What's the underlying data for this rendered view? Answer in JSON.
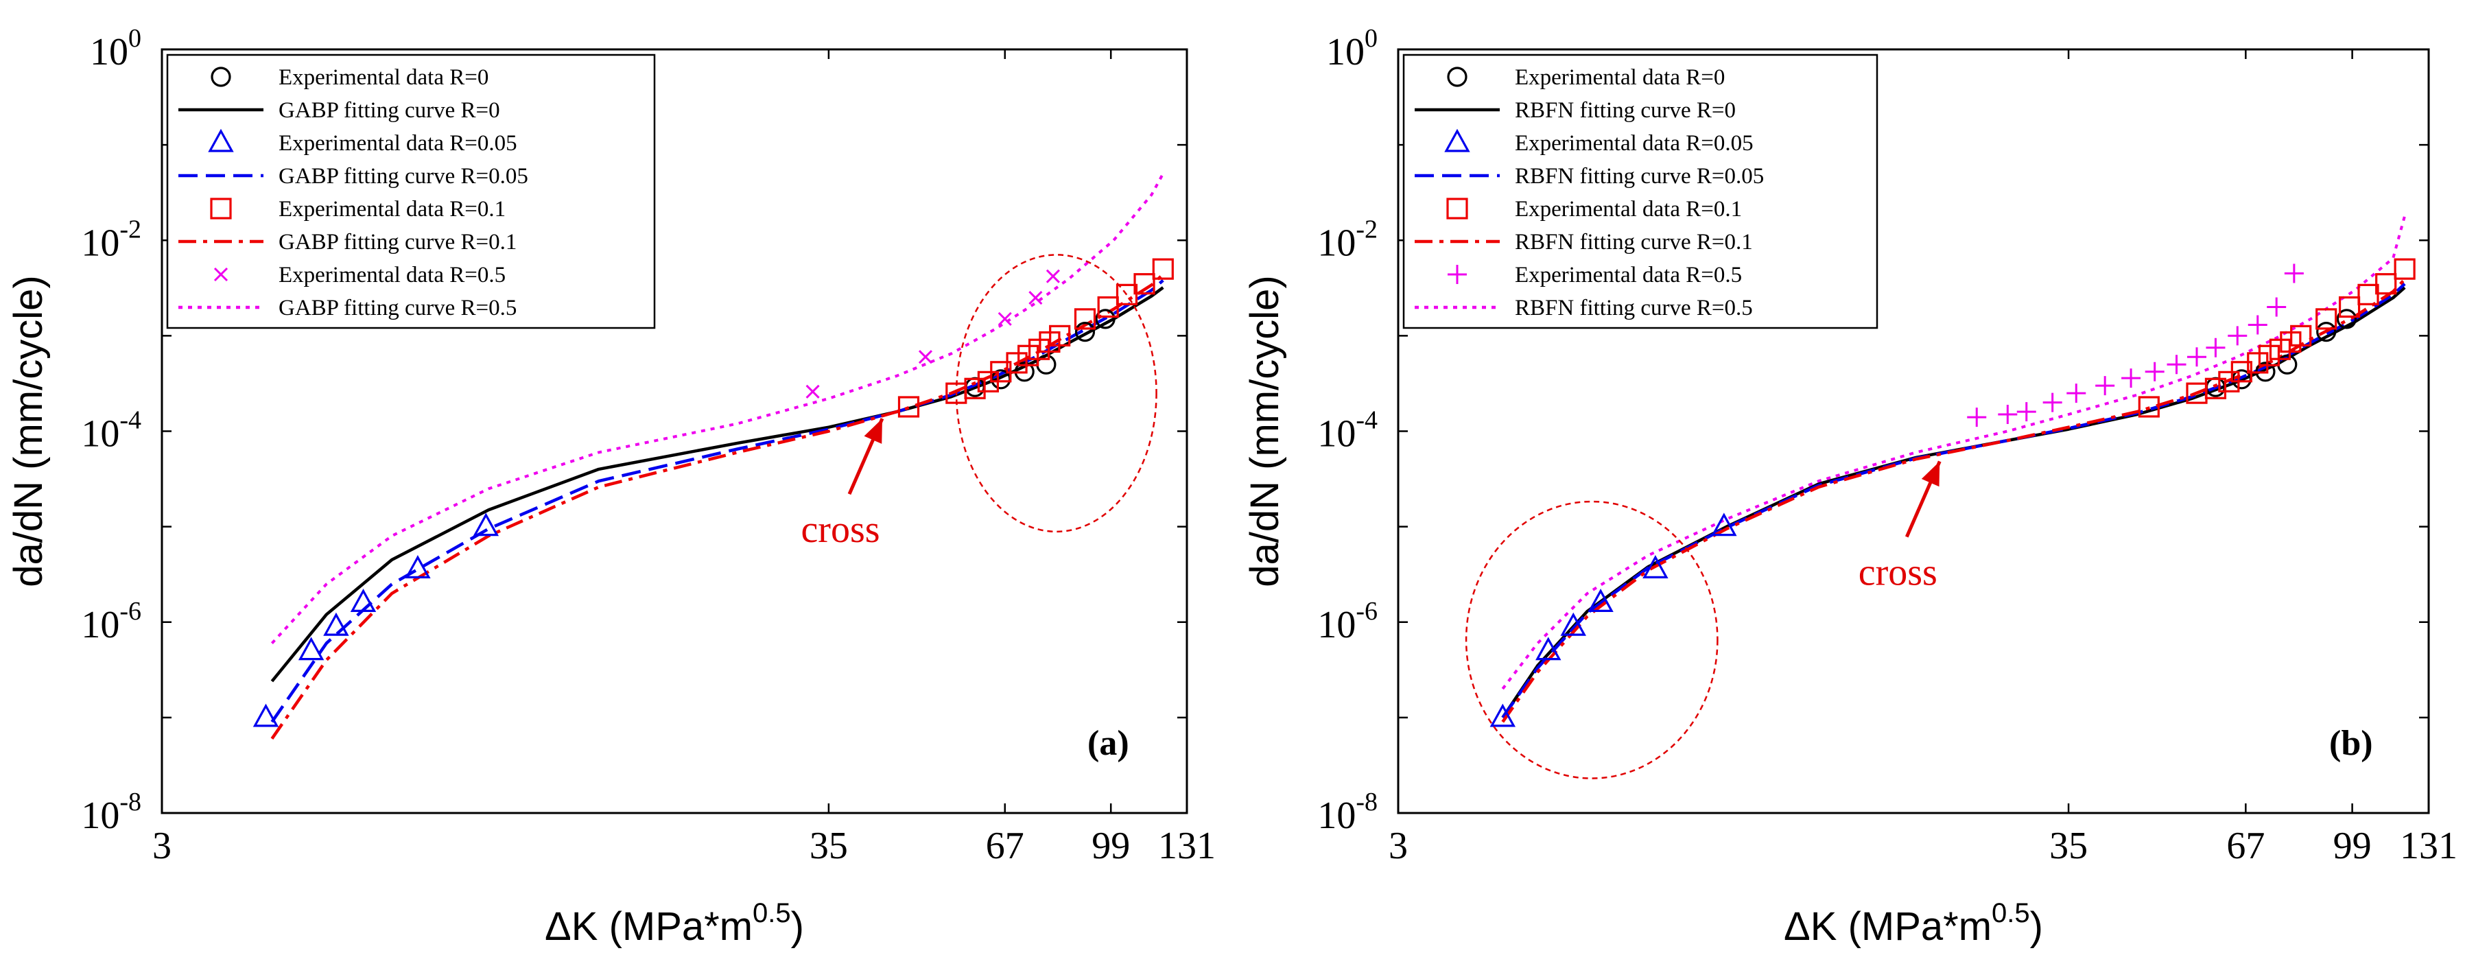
{
  "chart_data": [
    {
      "type": "line",
      "panel_label": "(a)",
      "xlabel": "ΔK (MPa*m",
      "xlabel_sup": "0.5",
      "xlabel_end": ")",
      "ylabel": "da/dN (mm/cycle)",
      "x_scale": "log",
      "y_scale": "log",
      "xlim": [
        3,
        131
      ],
      "ylim": [
        1e-08,
        1
      ],
      "x_ticks": [
        {
          "value": 3,
          "label": "3"
        },
        {
          "value": 35,
          "label": "35"
        },
        {
          "value": 67,
          "label": "67"
        },
        {
          "value": 99,
          "label": "99"
        },
        {
          "value": 131,
          "label": "131"
        }
      ],
      "y_ticks": [
        {
          "value": 1e-08,
          "base": "10",
          "exp": "-8"
        },
        {
          "value": 1e-06,
          "base": "10",
          "exp": "-6"
        },
        {
          "value": 0.0001,
          "base": "10",
          "exp": "-4"
        },
        {
          "value": 0.01,
          "base": "10",
          "exp": "-2"
        },
        {
          "value": 1,
          "base": "10",
          "exp": "0"
        }
      ],
      "grid": false,
      "legend_position": "top-left",
      "annotation": {
        "text": "cross",
        "x": 42,
        "y": 0.00016
      },
      "highlight_ellipse": {
        "cx": 81,
        "cy": 0.00025,
        "rx_log": 0.16,
        "ry_log": 1.45
      },
      "series": [
        {
          "name": "Experimental data R=0",
          "kind": "scatter",
          "marker": "circle",
          "color": "#000000",
          "x": [
            60,
            66,
            72,
            78,
            90,
            97
          ],
          "y": [
            0.00029,
            0.00035,
            0.00042,
            0.0005,
            0.0011,
            0.0015
          ]
        },
        {
          "name": "GABP fitting curve R=0",
          "kind": "line",
          "dash": "solid",
          "color": "#000000",
          "x": [
            4.5,
            5.5,
            7,
            10,
            15,
            25,
            35,
            45,
            55,
            65,
            75,
            85,
            100,
            115,
            120
          ],
          "y": [
            2.4e-07,
            1.2e-06,
            4.5e-06,
            1.5e-05,
            4e-05,
            7.5e-05,
            0.00011,
            0.00016,
            0.00023,
            0.00035,
            0.00054,
            0.00085,
            0.0015,
            0.0026,
            0.0032
          ]
        },
        {
          "name": "Experimental data R=0.05",
          "kind": "scatter",
          "marker": "triangle",
          "color": "#0000ee",
          "x": [
            4.4,
            5.2,
            5.7,
            6.3,
            7.7,
            9.9
          ],
          "y": [
            1e-07,
            5e-07,
            9e-07,
            1.6e-06,
            3.6e-06,
            1e-05
          ]
        },
        {
          "name": "GABP fitting curve R=0.05",
          "kind": "line",
          "dash": "dashed",
          "color": "#0000ee",
          "x": [
            4.5,
            5.5,
            7,
            10,
            15,
            25,
            35,
            45,
            55,
            65,
            75,
            85,
            100,
            115,
            120
          ],
          "y": [
            9e-08,
            6e-07,
            2.5e-06,
            9.5e-06,
            3e-05,
            6.5e-05,
            0.000105,
            0.00016,
            0.00024,
            0.00038,
            0.0006,
            0.00095,
            0.0017,
            0.003,
            0.0038
          ]
        },
        {
          "name": "Experimental data R=0.1",
          "kind": "scatter",
          "marker": "square",
          "color": "#ee0000",
          "x": [
            47,
            56,
            60,
            63,
            66,
            70,
            73,
            76,
            79,
            82,
            90,
            98,
            105,
            112,
            120
          ],
          "y": [
            0.00018,
            0.00025,
            0.00028,
            0.00033,
            0.00042,
            0.00052,
            0.00062,
            0.00072,
            0.00086,
            0.001,
            0.0015,
            0.002,
            0.0027,
            0.0035,
            0.005
          ]
        },
        {
          "name": "GABP fitting curve R=0.1",
          "kind": "line",
          "dash": "dashdot",
          "color": "#ee0000",
          "x": [
            4.5,
            5.5,
            7,
            10,
            15,
            25,
            35,
            45,
            55,
            65,
            75,
            85,
            100,
            115,
            120
          ],
          "y": [
            6e-08,
            4e-07,
            2e-06,
            8e-06,
            2.6e-05,
            6e-05,
            0.0001,
            0.00016,
            0.00025,
            0.0004,
            0.00065,
            0.00105,
            0.0019,
            0.0034,
            0.0044
          ]
        },
        {
          "name": "Experimental data R=0.5",
          "kind": "scatter",
          "marker": "x",
          "color": "#ee00ee",
          "x": [
            33,
            50,
            67,
            75,
            80
          ],
          "y": [
            0.00026,
            0.0006,
            0.0015,
            0.0025,
            0.0042
          ]
        },
        {
          "name": "GABP fitting curve R=0.5",
          "kind": "line",
          "dash": "dotted",
          "color": "#ee00ee",
          "x": [
            4.5,
            5.5,
            7,
            10,
            15,
            25,
            35,
            45,
            55,
            65,
            75,
            85,
            100,
            115,
            120
          ],
          "y": [
            6e-07,
            2.5e-06,
            8e-06,
            2.5e-05,
            6e-05,
            0.00012,
            0.00022,
            0.00038,
            0.00065,
            0.0012,
            0.0022,
            0.004,
            0.01,
            0.03,
            0.05
          ]
        }
      ]
    },
    {
      "type": "line",
      "panel_label": "(b)",
      "xlabel": "ΔK (MPa*m",
      "xlabel_sup": "0.5",
      "xlabel_end": ")",
      "ylabel": "da/dN (mm/cycle)",
      "x_scale": "log",
      "y_scale": "log",
      "xlim": [
        3,
        131
      ],
      "ylim": [
        1e-08,
        1
      ],
      "x_ticks": [
        {
          "value": 3,
          "label": "3"
        },
        {
          "value": 35,
          "label": "35"
        },
        {
          "value": 67,
          "label": "67"
        },
        {
          "value": 99,
          "label": "99"
        },
        {
          "value": 131,
          "label": "131"
        }
      ],
      "y_ticks": [
        {
          "value": 1e-08,
          "base": "10",
          "exp": "-8"
        },
        {
          "value": 1e-06,
          "base": "10",
          "exp": "-6"
        },
        {
          "value": 0.0001,
          "base": "10",
          "exp": "-4"
        },
        {
          "value": 0.01,
          "base": "10",
          "exp": "-2"
        },
        {
          "value": 1,
          "base": "10",
          "exp": "0"
        }
      ],
      "grid": false,
      "legend_position": "top-left",
      "annotation": {
        "text": "cross",
        "x": 21.5,
        "y": 5.7e-05
      },
      "highlight_ellipse": {
        "cx": 6.1,
        "cy": 6.5e-07,
        "rx_log": 0.2,
        "ry_log": 1.45
      },
      "series": [
        {
          "name": "Experimental data R=0",
          "kind": "scatter",
          "marker": "circle",
          "color": "#000000",
          "x": [
            60,
            66,
            72,
            78,
            90,
            97
          ],
          "y": [
            0.00029,
            0.00035,
            0.00042,
            0.0005,
            0.0011,
            0.0015
          ]
        },
        {
          "name": "RBFN fitting curve R=0",
          "kind": "line",
          "dash": "solid",
          "color": "#000000",
          "x": [
            4.4,
            5,
            6,
            7.5,
            10,
            14,
            20,
            28,
            35,
            45,
            55,
            65,
            75,
            85,
            100,
            115,
            120
          ],
          "y": [
            1e-07,
            3.5e-07,
            1.3e-06,
            3.8e-06,
            1e-05,
            2.8e-05,
            5.3e-05,
            8e-05,
            0.000105,
            0.00015,
            0.00022,
            0.00033,
            0.0005,
            0.0008,
            0.0014,
            0.0025,
            0.0032
          ]
        },
        {
          "name": "Experimental data R=0.05",
          "kind": "scatter",
          "marker": "triangle",
          "color": "#0000ee",
          "x": [
            4.4,
            5.2,
            5.7,
            6.3,
            7.7,
            9.9
          ],
          "y": [
            1e-07,
            5e-07,
            9e-07,
            1.6e-06,
            3.6e-06,
            1e-05
          ]
        },
        {
          "name": "RBFN fitting curve R=0.05",
          "kind": "line",
          "dash": "dashed",
          "color": "#0000ee",
          "x": [
            4.4,
            5,
            6,
            7.5,
            10,
            14,
            20,
            28,
            35,
            45,
            55,
            65,
            75,
            85,
            100,
            115,
            120
          ],
          "y": [
            1e-07,
            3.3e-07,
            1.25e-06,
            3.7e-06,
            9.8e-06,
            2.7e-05,
            5.2e-05,
            8e-05,
            0.000107,
            0.000155,
            0.00023,
            0.00035,
            0.00053,
            0.00085,
            0.0015,
            0.0027,
            0.0035
          ]
        },
        {
          "name": "Experimental data R=0.1",
          "kind": "scatter",
          "marker": "square",
          "color": "#ee0000",
          "x": [
            47,
            56,
            60,
            63,
            66,
            70,
            73,
            76,
            79,
            82,
            90,
            98,
            105,
            112,
            120
          ],
          "y": [
            0.00018,
            0.00025,
            0.00028,
            0.00033,
            0.00042,
            0.00052,
            0.00062,
            0.00072,
            0.00086,
            0.001,
            0.0015,
            0.002,
            0.0027,
            0.0035,
            0.005
          ]
        },
        {
          "name": "RBFN fitting curve R=0.1",
          "kind": "line",
          "dash": "dashdot",
          "color": "#ee0000",
          "x": [
            4.4,
            5,
            6,
            7.5,
            10,
            14,
            20,
            28,
            35,
            45,
            55,
            65,
            75,
            85,
            100,
            115,
            120
          ],
          "y": [
            9e-08,
            3e-07,
            1.15e-06,
            3.5e-06,
            9.5e-06,
            2.6e-05,
            5.1e-05,
            8e-05,
            0.00011,
            0.00016,
            0.00024,
            0.00037,
            0.00057,
            0.00092,
            0.0016,
            0.0029,
            0.0039
          ]
        },
        {
          "name": "Experimental data R=0.5",
          "kind": "scatter",
          "marker": "plus",
          "color": "#ee00ee",
          "x": [
            25,
            28,
            30,
            33,
            36,
            40,
            44,
            48,
            52,
            56,
            60,
            65,
            70,
            75,
            80
          ],
          "y": [
            0.00014,
            0.00015,
            0.00016,
            0.0002,
            0.00025,
            0.0003,
            0.00036,
            0.00042,
            0.0005,
            0.0006,
            0.00075,
            0.001,
            0.0013,
            0.002,
            0.0045
          ]
        },
        {
          "name": "RBFN fitting curve R=0.5",
          "kind": "line",
          "dash": "dotted",
          "color": "#ee00ee",
          "x": [
            4.4,
            5,
            6,
            7.5,
            10,
            14,
            20,
            28,
            35,
            45,
            55,
            65,
            75,
            85,
            100,
            115,
            120
          ],
          "y": [
            2e-07,
            6e-07,
            2e-06,
            5e-06,
            1.2e-05,
            3e-05,
            6e-05,
            0.0001,
            0.00015,
            0.00024,
            0.00038,
            0.0006,
            0.00095,
            0.0015,
            0.003,
            0.0065,
            0.018
          ]
        }
      ]
    }
  ]
}
